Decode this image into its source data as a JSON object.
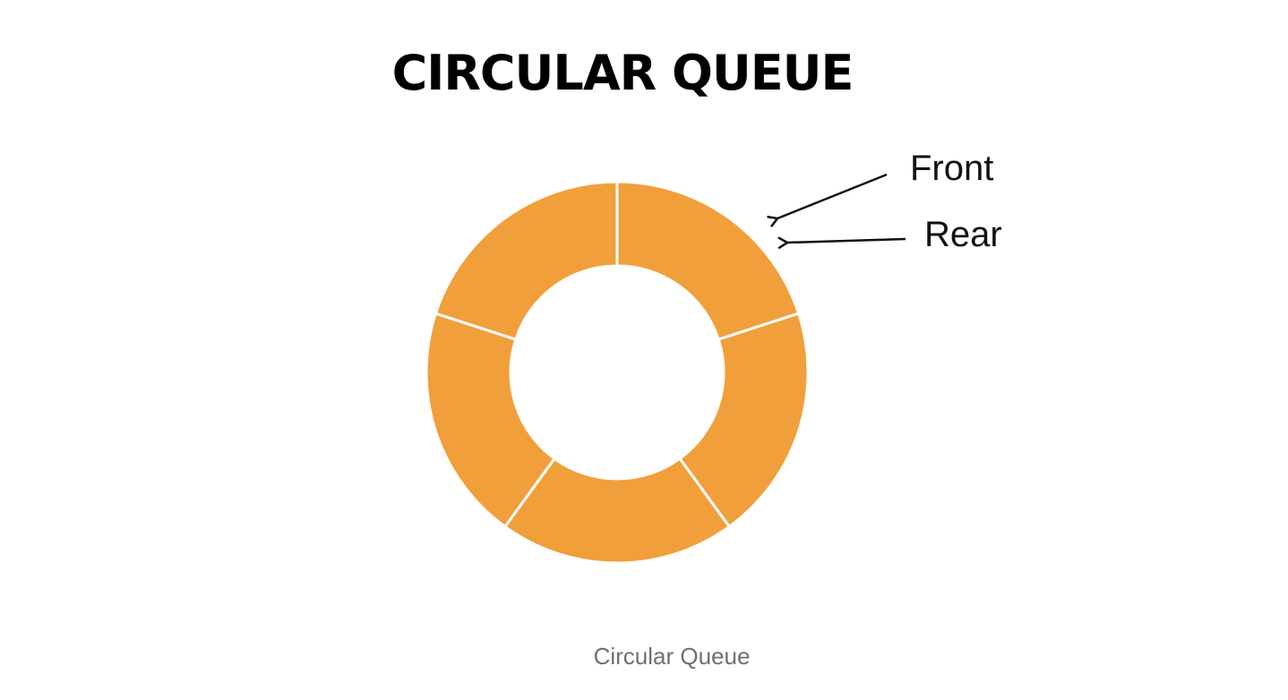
{
  "title": "CIRCULAR QUEUE",
  "ring": {
    "segment_count": 5,
    "fill_color": "#F19F3B",
    "divider_color": "#ffffff"
  },
  "pointers": {
    "front_label": "Front",
    "rear_label": "Rear"
  },
  "caption": "Circular Queue"
}
